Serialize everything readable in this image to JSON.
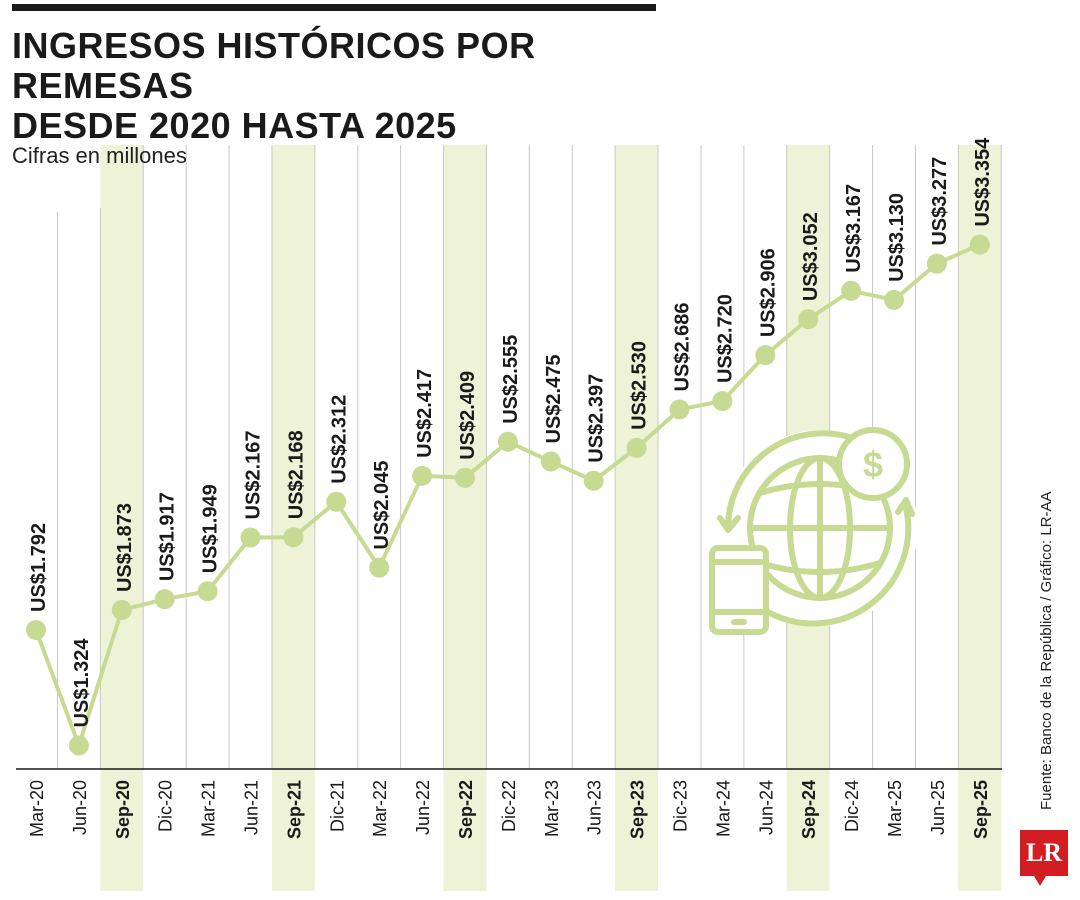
{
  "header": {
    "title_line1": "INGRESOS HISTÓRICOS POR REMESAS",
    "title_line2": "DESDE 2020 HASTA 2025",
    "subtitle": "Cifras en millones"
  },
  "footer": {
    "source": "Fuente: Banco de la República / Gráfico: LR-AA",
    "logo_text": "LR"
  },
  "colors": {
    "line": "#c6da91",
    "highlight_band": "#eef2d6",
    "gridline": "#c8c8c8",
    "text": "#1a1a1a",
    "logo": "#d21d23"
  },
  "icon": "globe-money-transfer-icon",
  "chart_data": {
    "type": "line",
    "title": "INGRESOS HISTÓRICOS POR REMESAS DESDE 2020 HASTA 2025",
    "ylabel": "Cifras en millones",
    "categories": [
      "Mar-20",
      "Jun-20",
      "Sep-20",
      "Dic-20",
      "Mar-21",
      "Jun-21",
      "Sep-21",
      "Dic-21",
      "Mar-22",
      "Jun-22",
      "Sep-22",
      "Dic-22",
      "Mar-23",
      "Jun-23",
      "Sep-23",
      "Dic-23",
      "Mar-24",
      "Jun-24",
      "Sep-24",
      "Dic-24",
      "Mar-25",
      "Jun-25",
      "Sep-25"
    ],
    "values": [
      1792,
      1324,
      1873,
      1917,
      1949,
      2167,
      2168,
      2312,
      2045,
      2417,
      2409,
      2555,
      2475,
      2397,
      2530,
      2686,
      2720,
      2906,
      3052,
      3167,
      3130,
      3277,
      3354
    ],
    "labels": [
      "US$1.792",
      "US$1.324",
      "US$1.873",
      "US$1.917",
      "US$1.949",
      "US$2.167",
      "US$2.168",
      "US$2.312",
      "US$2.045",
      "US$2.417",
      "US$2.409",
      "US$2.555",
      "US$2.475",
      "US$2.397",
      "US$2.530",
      "US$2.686",
      "US$2.720",
      "US$2.906",
      "US$3.052",
      "US$3.167",
      "US$3.130",
      "US$3.277",
      "US$3.354"
    ],
    "highlighted": [
      "Sep-20",
      "Sep-21",
      "Sep-22",
      "Sep-23",
      "Sep-24",
      "Sep-25"
    ],
    "grid": true
  }
}
